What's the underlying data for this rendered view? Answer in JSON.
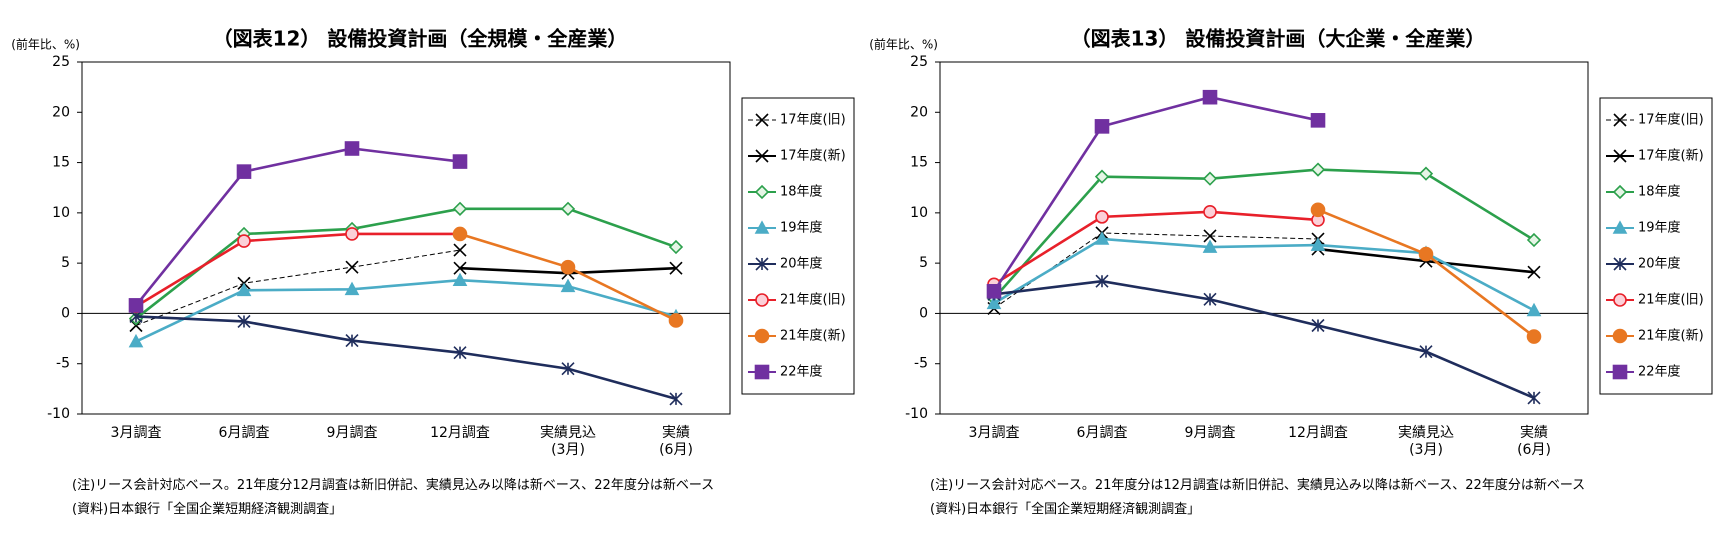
{
  "chart_data": [
    {
      "type": "line",
      "title": "（図表12） 設備投資計画（全規模・全産業）",
      "y_label": "(前年比、%)",
      "categories": [
        "3月調査",
        "6月調査",
        "9月調査",
        "12月調査",
        "実績見込\n(3月)",
        "実績\n(6月)"
      ],
      "ylim": [
        -10,
        25
      ],
      "yticks": [
        -10,
        -5,
        0,
        5,
        10,
        15,
        20,
        25
      ],
      "series": [
        {
          "name": "17年度(旧)",
          "color": "#000000",
          "marker": "x",
          "dashed": true,
          "values": [
            -1.2,
            3.0,
            4.6,
            6.3,
            null,
            null
          ]
        },
        {
          "name": "17年度(新)",
          "color": "#000000",
          "marker": "x",
          "dashed": false,
          "values": [
            null,
            null,
            null,
            4.5,
            4.0,
            4.5
          ]
        },
        {
          "name": "18年度",
          "color": "#2ca04c",
          "marker": "diamond-open",
          "dashed": false,
          "values": [
            -0.5,
            7.9,
            8.4,
            10.4,
            10.4,
            6.6
          ]
        },
        {
          "name": "19年度",
          "color": "#4bacc6",
          "marker": "triangle",
          "dashed": false,
          "values": [
            -2.8,
            2.3,
            2.4,
            3.3,
            2.7,
            -0.3
          ]
        },
        {
          "name": "20年度",
          "color": "#1f2d5c",
          "marker": "asterisk",
          "dashed": false,
          "values": [
            -0.3,
            -0.8,
            -2.7,
            -3.9,
            -5.5,
            -8.5
          ]
        },
        {
          "name": "21年度(旧)",
          "color": "#e8202a",
          "marker": "circle-open",
          "dashed": false,
          "values": [
            0.7,
            7.2,
            7.9,
            7.9,
            null,
            null
          ]
        },
        {
          "name": "21年度(新)",
          "color": "#e87722",
          "marker": "circle",
          "dashed": false,
          "values": [
            null,
            null,
            null,
            7.9,
            4.6,
            -0.7
          ]
        },
        {
          "name": "22年度",
          "color": "#7030a0",
          "marker": "square",
          "dashed": false,
          "values": [
            0.8,
            14.1,
            16.4,
            15.1,
            null,
            null
          ]
        }
      ],
      "notes": [
        "(注)リース会計対応ベース。21年度分12月調査は新旧併記、実績見込み以降は新ベース、22年度分は新ベース",
        "(資料)日本銀行「全国企業短期経済観測調査」"
      ]
    },
    {
      "type": "line",
      "title": "（図表13） 設備投資計画（大企業・全産業）",
      "y_label": "(前年比、%)",
      "categories": [
        "3月調査",
        "6月調査",
        "9月調査",
        "12月調査",
        "実績見込\n(3月)",
        "実績\n(6月)"
      ],
      "ylim": [
        -10,
        25
      ],
      "yticks": [
        -10,
        -5,
        0,
        5,
        10,
        15,
        20,
        25
      ],
      "series": [
        {
          "name": "17年度(旧)",
          "color": "#000000",
          "marker": "x",
          "dashed": true,
          "values": [
            0.5,
            8.0,
            7.7,
            7.4,
            null,
            null
          ]
        },
        {
          "name": "17年度(新)",
          "color": "#000000",
          "marker": "x",
          "dashed": false,
          "values": [
            null,
            null,
            null,
            6.4,
            5.2,
            4.1
          ]
        },
        {
          "name": "18年度",
          "color": "#2ca04c",
          "marker": "diamond-open",
          "dashed": false,
          "values": [
            1.5,
            13.6,
            13.4,
            14.3,
            13.9,
            7.3
          ]
        },
        {
          "name": "19年度",
          "color": "#4bacc6",
          "marker": "triangle",
          "dashed": false,
          "values": [
            1.0,
            7.4,
            6.6,
            6.8,
            6.0,
            0.3
          ]
        },
        {
          "name": "20年度",
          "color": "#1f2d5c",
          "marker": "asterisk",
          "dashed": false,
          "values": [
            1.9,
            3.2,
            1.4,
            -1.2,
            -3.8,
            -8.4
          ]
        },
        {
          "name": "21年度(旧)",
          "color": "#e8202a",
          "marker": "circle-open",
          "dashed": false,
          "values": [
            2.9,
            9.6,
            10.1,
            9.3,
            null,
            null
          ]
        },
        {
          "name": "21年度(新)",
          "color": "#e87722",
          "marker": "circle",
          "dashed": false,
          "values": [
            null,
            null,
            null,
            10.3,
            5.9,
            -2.3
          ]
        },
        {
          "name": "22年度",
          "color": "#7030a0",
          "marker": "square",
          "dashed": false,
          "values": [
            2.2,
            18.6,
            21.5,
            19.2,
            null,
            null
          ]
        }
      ],
      "notes": [
        "(注)リース会計対応ベース。21年度分は12月調査は新旧併記、実績見込み以降は新ベース、22年度分は新ベース",
        "(資料)日本銀行「全国企業短期経済観測調査」"
      ]
    }
  ]
}
